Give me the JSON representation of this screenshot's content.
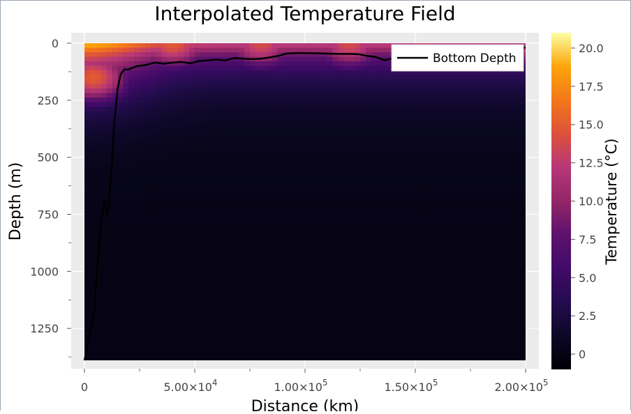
{
  "chart_data": {
    "type": "heatmap",
    "title": "Interpolated Temperature Field",
    "xlabel": "Distance (km)",
    "ylabel": "Depth (m)",
    "xlim": [
      0,
      200000
    ],
    "ylim": [
      1390,
      0
    ],
    "y_inverted": true,
    "grid": true,
    "x_ticks": [
      {
        "value": 0,
        "label": "0"
      },
      {
        "value": 50000,
        "label": "5.00×10",
        "exp": "4"
      },
      {
        "value": 100000,
        "label": "1.00×10",
        "exp": "5"
      },
      {
        "value": 150000,
        "label": "1.50×10",
        "exp": "5"
      },
      {
        "value": 200000,
        "label": "2.00×10",
        "exp": "5"
      }
    ],
    "y_ticks": [
      {
        "value": 0,
        "label": "0"
      },
      {
        "value": 250,
        "label": "250"
      },
      {
        "value": 500,
        "label": "500"
      },
      {
        "value": 750,
        "label": "750"
      },
      {
        "value": 1000,
        "label": "1000"
      },
      {
        "value": 1250,
        "label": "1250"
      }
    ],
    "colorbar": {
      "label": "Temperature (°C)",
      "colormap": "inferno",
      "range": [
        -1,
        21
      ],
      "ticks": [
        {
          "value": 0,
          "label": "0"
        },
        {
          "value": 2.5,
          "label": "2.5"
        },
        {
          "value": 5,
          "label": "5.0"
        },
        {
          "value": 7.5,
          "label": "7.5"
        },
        {
          "value": 10,
          "label": "10.0"
        },
        {
          "value": 12.5,
          "label": "12.5"
        },
        {
          "value": 15,
          "label": "15.0"
        },
        {
          "value": 17.5,
          "label": "17.5"
        },
        {
          "value": 20,
          "label": "20.0"
        }
      ]
    },
    "legend": {
      "placement": "top-right",
      "entries": [
        "Bottom Depth"
      ]
    },
    "series": [
      {
        "name": "Bottom Depth",
        "type": "line",
        "color": "#000000",
        "x": [
          0,
          2000,
          4500,
          7000,
          9000,
          10500,
          11500,
          12500,
          13500,
          15000,
          16500,
          18000,
          20000,
          24000,
          28000,
          32000,
          36000,
          40000,
          44000,
          48000,
          52000,
          56000,
          60000,
          64000,
          68000,
          72000,
          76000,
          80000,
          84000,
          88000,
          92000,
          96000,
          100000,
          104000,
          108000,
          112000,
          116000,
          120000,
          124000,
          128000,
          132000,
          136000,
          140000,
          144000,
          148000,
          152000,
          156000,
          160000,
          164000,
          168000,
          172000,
          176000,
          180000,
          184000,
          188000,
          192000,
          196000,
          200000
        ],
        "y": [
          1390,
          1300,
          1170,
          830,
          690,
          760,
          650,
          520,
          350,
          200,
          135,
          115,
          115,
          100,
          95,
          85,
          90,
          85,
          82,
          88,
          78,
          75,
          72,
          75,
          65,
          68,
          70,
          68,
          62,
          55,
          45,
          43,
          43,
          44,
          45,
          46,
          47,
          47,
          48,
          55,
          60,
          75,
          65,
          60,
          58,
          50,
          45,
          42,
          40,
          35,
          30,
          28,
          27,
          26,
          25,
          22,
          20,
          20
        ]
      }
    ],
    "field": {
      "description": "temperature interpolated over distance (m) and depth (m)",
      "surface_hotspots": [
        {
          "x": 0,
          "depth": 0,
          "temp": 17
        },
        {
          "x": 4000,
          "depth": 150,
          "temp": 15
        },
        {
          "x": 40000,
          "depth": 0,
          "temp": 15
        },
        {
          "x": 80000,
          "depth": 0,
          "temp": 14
        },
        {
          "x": 120000,
          "depth": 0,
          "temp": 14
        },
        {
          "x": 155000,
          "depth": 0,
          "temp": 13
        },
        {
          "x": 198000,
          "depth": 0,
          "temp": 12
        }
      ],
      "deep_temp": 0
    }
  }
}
